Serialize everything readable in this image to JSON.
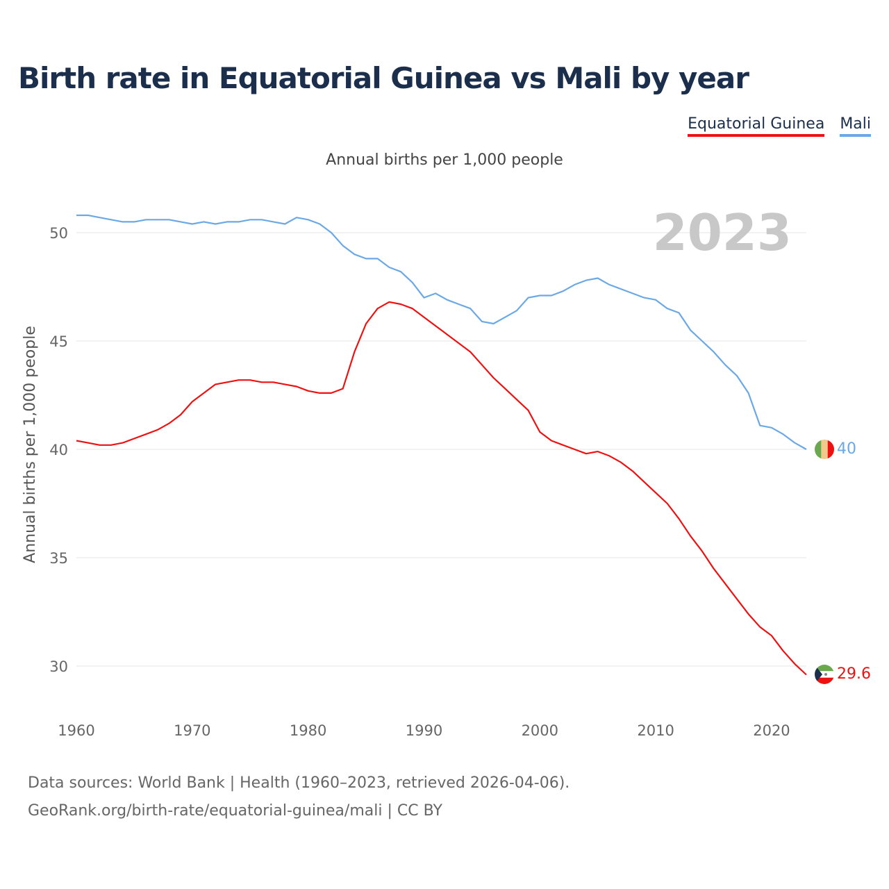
{
  "title": "Birth rate in Equatorial Guinea vs Mali by year",
  "subtitle": "Annual births per 1,000 people",
  "legend": {
    "eg_label": "Equatorial Guinea",
    "mali_label": "Mali"
  },
  "source": {
    "line1": "Data sources: World Bank | Health (1960–2023, retrieved 2026-04-06).",
    "line2": "GeoRank.org/birth-rate/equatorial-guinea/mali | CC BY"
  },
  "chart_data": {
    "type": "line",
    "title": "Birth rate in Equatorial Guinea vs Mali by year",
    "subtitle": "Annual births per 1,000 people",
    "xlabel": "",
    "ylabel": "Annual births per 1,000 people",
    "xlim": [
      1960,
      2023
    ],
    "ylim": [
      28,
      52
    ],
    "x_ticks": [
      1960,
      1970,
      1980,
      1990,
      2000,
      2010,
      2020
    ],
    "y_ticks": [
      30,
      35,
      40,
      45,
      50
    ],
    "year_label": "2023",
    "grid": true,
    "legend_position": "top-right",
    "x": [
      1960,
      1961,
      1962,
      1963,
      1964,
      1965,
      1966,
      1967,
      1968,
      1969,
      1970,
      1971,
      1972,
      1973,
      1974,
      1975,
      1976,
      1977,
      1978,
      1979,
      1980,
      1981,
      1982,
      1983,
      1984,
      1985,
      1986,
      1987,
      1988,
      1989,
      1990,
      1991,
      1992,
      1993,
      1994,
      1995,
      1996,
      1997,
      1998,
      1999,
      2000,
      2001,
      2002,
      2003,
      2004,
      2005,
      2006,
      2007,
      2008,
      2009,
      2010,
      2011,
      2012,
      2013,
      2014,
      2015,
      2016,
      2017,
      2018,
      2019,
      2020,
      2021,
      2022,
      2023
    ],
    "series": [
      {
        "name": "Equatorial Guinea",
        "color": "#ee1111",
        "end_label": "29.6",
        "values": [
          40.4,
          40.3,
          40.2,
          40.2,
          40.3,
          40.5,
          40.7,
          40.9,
          41.2,
          41.6,
          42.2,
          42.6,
          43.0,
          43.1,
          43.2,
          43.2,
          43.1,
          43.1,
          43.0,
          42.9,
          42.7,
          42.6,
          42.6,
          42.8,
          44.5,
          45.8,
          46.5,
          46.8,
          46.7,
          46.5,
          46.1,
          45.7,
          45.3,
          44.9,
          44.5,
          43.9,
          43.3,
          42.8,
          42.3,
          41.8,
          40.8,
          40.4,
          40.2,
          40.0,
          39.8,
          39.9,
          39.7,
          39.4,
          39.0,
          38.5,
          38.0,
          37.5,
          36.8,
          36.0,
          35.3,
          34.5,
          33.8,
          33.1,
          32.4,
          31.8,
          31.4,
          30.7,
          30.1,
          29.6
        ]
      },
      {
        "name": "Mali",
        "color": "#6aa8e6",
        "end_label": "40",
        "values": [
          50.8,
          50.8,
          50.7,
          50.6,
          50.5,
          50.5,
          50.6,
          50.6,
          50.6,
          50.5,
          50.4,
          50.5,
          50.4,
          50.5,
          50.5,
          50.6,
          50.6,
          50.5,
          50.4,
          50.7,
          50.6,
          50.4,
          50.0,
          49.4,
          49.0,
          48.8,
          48.8,
          48.4,
          48.2,
          47.7,
          47.0,
          47.2,
          46.9,
          46.7,
          46.5,
          45.9,
          45.8,
          46.1,
          46.4,
          47.0,
          47.1,
          47.1,
          47.3,
          47.6,
          47.8,
          47.9,
          47.6,
          47.4,
          47.2,
          47.0,
          46.9,
          46.5,
          46.3,
          45.5,
          45.0,
          44.5,
          43.9,
          43.4,
          42.6,
          41.1,
          41.0,
          40.7,
          40.3,
          40.0
        ]
      }
    ]
  }
}
